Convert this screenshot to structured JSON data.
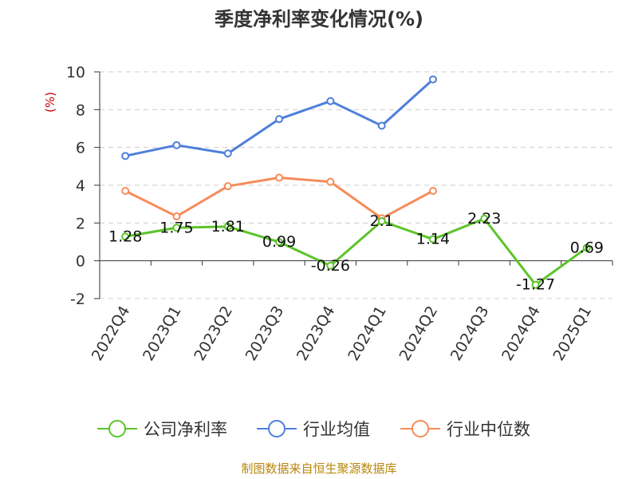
{
  "chart_data": {
    "type": "line",
    "title": "季度净利率变化情况(%)",
    "ylabel": "(%)",
    "categories": [
      "2022Q4",
      "2023Q1",
      "2023Q2",
      "2023Q3",
      "2023Q4",
      "2024Q1",
      "2024Q2",
      "2024Q3",
      "2024Q4",
      "2025Q1"
    ],
    "ylim": [
      -2,
      10
    ],
    "yticks": [
      -2,
      0,
      2,
      4,
      6,
      8,
      10
    ],
    "grid": true,
    "legend_position": "bottom",
    "series": [
      {
        "name": "公司净利率",
        "color": "#5cc42a",
        "values": [
          1.28,
          1.75,
          1.81,
          0.99,
          -0.26,
          2.1,
          1.14,
          2.23,
          -1.27,
          0.69
        ],
        "labels": [
          "1.28",
          "1.75",
          "1.81",
          "0.99",
          "-0.26",
          "2.1",
          "1.14",
          "2.23",
          "-1.27",
          "0.69"
        ]
      },
      {
        "name": "行业均值",
        "color": "#4f7fdb",
        "values": [
          5.55,
          6.12,
          5.68,
          7.5,
          8.45,
          7.15,
          9.6,
          null,
          null,
          null
        ]
      },
      {
        "name": "行业中位数",
        "color": "#f58c5a",
        "values": [
          3.7,
          2.35,
          3.95,
          4.4,
          4.18,
          2.25,
          3.7,
          null,
          null,
          null
        ]
      }
    ]
  },
  "source": "制图数据来自恒生聚源数据库"
}
